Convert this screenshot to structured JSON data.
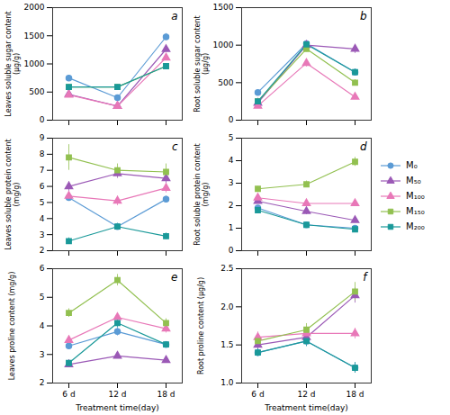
{
  "chart_data": [
    {
      "type": "line",
      "annotation": "a",
      "ylabel": "Leaves soluble sugar content  (μg/g)",
      "x": [
        6,
        12,
        18
      ],
      "xlim": [
        4,
        20
      ],
      "xticks": [
        {
          "value": 6,
          "label": "6 d"
        },
        {
          "value": 12,
          "label": "12 d"
        },
        {
          "value": 18,
          "label": "18 d"
        }
      ],
      "tick_labels": "y",
      "ylim": [
        0,
        2000
      ],
      "yticks": [
        0,
        500,
        1000,
        1500,
        2000
      ],
      "grid": false,
      "legend": "right",
      "series": [
        {
          "name": "M₀",
          "color": "#5b9bd5",
          "marker": "circle",
          "values": [
            750,
            400,
            1480
          ],
          "errors": [
            50,
            30,
            60
          ]
        },
        {
          "name": "M₅₀",
          "color": "#9b59b6",
          "marker": "triangle",
          "values": [
            460,
            250,
            1260
          ],
          "errors": [
            30,
            20,
            50
          ]
        },
        {
          "name": "M₁₀₀",
          "color": "#e878b8",
          "marker": "triangle",
          "values": [
            450,
            250,
            1110
          ],
          "errors": [
            30,
            20,
            50
          ]
        },
        {
          "name": "M₁₅₀",
          "color": "#92c050",
          "marker": "square",
          "values": [
            590,
            590,
            960
          ],
          "errors": [
            40,
            40,
            40
          ]
        },
        {
          "name": "M₂₀₀",
          "color": "#1a9999",
          "marker": "square",
          "values": [
            590,
            590,
            960
          ],
          "errors": [
            40,
            40,
            40
          ]
        }
      ]
    },
    {
      "type": "line",
      "annotation": "b",
      "ylabel": "Root soluble sugar content  (μg/g)",
      "x": [
        6,
        12,
        18
      ],
      "xlim": [
        4,
        20
      ],
      "xticks": [
        {
          "value": 6,
          "label": "6 d"
        },
        {
          "value": 12,
          "label": "12 d"
        },
        {
          "value": 18,
          "label": "18 d"
        }
      ],
      "tick_labels": "y",
      "ylim": [
        0,
        1500
      ],
      "yticks": [
        0,
        500,
        1000,
        1500
      ],
      "grid": false,
      "series": [
        {
          "name": "M₀",
          "color": "#5b9bd5",
          "marker": "circle",
          "values": [
            370,
            1020,
            640
          ],
          "errors": [
            30,
            40,
            40
          ]
        },
        {
          "name": "M₅₀",
          "color": "#9b59b6",
          "marker": "triangle",
          "values": [
            230,
            1000,
            950
          ],
          "errors": [
            20,
            30,
            60
          ]
        },
        {
          "name": "M₁₀₀",
          "color": "#e878b8",
          "marker": "triangle",
          "values": [
            190,
            760,
            310
          ],
          "errors": [
            20,
            50,
            30
          ]
        },
        {
          "name": "M₁₅₀",
          "color": "#92c050",
          "marker": "square",
          "values": [
            250,
            950,
            500
          ],
          "errors": [
            20,
            40,
            40
          ]
        },
        {
          "name": "M₂₀₀",
          "color": "#1a9999",
          "marker": "square",
          "values": [
            250,
            1010,
            640
          ],
          "errors": [
            20,
            40,
            40
          ]
        }
      ]
    },
    {
      "type": "line",
      "annotation": "c",
      "ylabel": "Leaves soluble protein content  (mg/g)",
      "x": [
        6,
        12,
        18
      ],
      "xlim": [
        4,
        20
      ],
      "xticks": [
        {
          "value": 6,
          "label": "6 d"
        },
        {
          "value": 12,
          "label": "12 d"
        },
        {
          "value": 18,
          "label": "18 d"
        }
      ],
      "tick_labels": "y",
      "ylim": [
        2,
        9
      ],
      "yticks": [
        2,
        3,
        4,
        5,
        6,
        7,
        8,
        9
      ],
      "grid": false,
      "series": [
        {
          "name": "M₀",
          "color": "#5b9bd5",
          "marker": "circle",
          "values": [
            5.3,
            3.5,
            5.2
          ],
          "errors": [
            0.2,
            0.2,
            0.2
          ]
        },
        {
          "name": "M₅₀",
          "color": "#9b59b6",
          "marker": "triangle",
          "values": [
            6.0,
            6.8,
            6.5
          ],
          "errors": [
            0.3,
            0.3,
            0.3
          ]
        },
        {
          "name": "M₁₀₀",
          "color": "#e878b8",
          "marker": "triangle",
          "values": [
            5.4,
            5.1,
            5.9
          ],
          "errors": [
            0.3,
            0.3,
            0.3
          ]
        },
        {
          "name": "M₁₅₀",
          "color": "#92c050",
          "marker": "square",
          "values": [
            7.8,
            7.0,
            6.9
          ],
          "errors": [
            0.8,
            0.4,
            0.5
          ]
        },
        {
          "name": "M₂₀₀",
          "color": "#1a9999",
          "marker": "square",
          "values": [
            2.6,
            3.5,
            2.9
          ],
          "errors": [
            0.2,
            0.2,
            0.2
          ]
        }
      ]
    },
    {
      "type": "line",
      "annotation": "d",
      "ylabel": "Root soluble protein content  (mg/g)",
      "x": [
        6,
        12,
        18
      ],
      "xlim": [
        4,
        20
      ],
      "xticks": [
        {
          "value": 6,
          "label": "6 d"
        },
        {
          "value": 12,
          "label": "12 d"
        },
        {
          "value": 18,
          "label": "18 d"
        }
      ],
      "tick_labels": "y",
      "ylim": [
        0,
        5
      ],
      "yticks": [
        0,
        1,
        2,
        3,
        4,
        5
      ],
      "grid": false,
      "series": [
        {
          "name": "M₀",
          "color": "#5b9bd5",
          "marker": "circle",
          "values": [
            1.9,
            1.15,
            1.0
          ],
          "errors": [
            0.1,
            0.1,
            0.1
          ]
        },
        {
          "name": "M₅₀",
          "color": "#9b59b6",
          "marker": "triangle",
          "values": [
            2.2,
            1.75,
            1.35
          ],
          "errors": [
            0.1,
            0.15,
            0.1
          ]
        },
        {
          "name": "M₁₀₀",
          "color": "#e878b8",
          "marker": "triangle",
          "values": [
            2.35,
            2.1,
            2.1
          ],
          "errors": [
            0.1,
            0.15,
            0.1
          ]
        },
        {
          "name": "M₁₅₀",
          "color": "#92c050",
          "marker": "square",
          "values": [
            2.75,
            2.95,
            3.95
          ],
          "errors": [
            0.1,
            0.15,
            0.2
          ]
        },
        {
          "name": "M₂₀₀",
          "color": "#1a9999",
          "marker": "square",
          "values": [
            1.8,
            1.15,
            0.95
          ],
          "errors": [
            0.1,
            0.1,
            0.1
          ]
        }
      ]
    },
    {
      "type": "line",
      "annotation": "e",
      "xlabel": "Treatment time(day)",
      "ylabel": "Leaves proline content  (mg/g)",
      "x": [
        6,
        12,
        18
      ],
      "xlim": [
        4,
        20
      ],
      "xticks": [
        {
          "value": 6,
          "label": "6 d"
        },
        {
          "value": 12,
          "label": "12 d"
        },
        {
          "value": 18,
          "label": "18 d"
        }
      ],
      "ylim": [
        2,
        6
      ],
      "yticks": [
        2,
        3,
        4,
        5,
        6
      ],
      "grid": false,
      "series": [
        {
          "name": "M₀",
          "color": "#5b9bd5",
          "marker": "circle",
          "values": [
            3.3,
            3.8,
            3.35
          ],
          "errors": [
            0.1,
            0.15,
            0.1
          ]
        },
        {
          "name": "M₅₀",
          "color": "#9b59b6",
          "marker": "triangle",
          "values": [
            2.65,
            2.95,
            2.8
          ],
          "errors": [
            0.1,
            0.1,
            0.1
          ]
        },
        {
          "name": "M₁₀₀",
          "color": "#e878b8",
          "marker": "triangle",
          "values": [
            3.5,
            4.3,
            3.9
          ],
          "errors": [
            0.15,
            0.15,
            0.15
          ]
        },
        {
          "name": "M₁₅₀",
          "color": "#92c050",
          "marker": "square",
          "values": [
            4.45,
            5.6,
            4.1
          ],
          "errors": [
            0.15,
            0.2,
            0.15
          ]
        },
        {
          "name": "M₂₀₀",
          "color": "#1a9999",
          "marker": "square",
          "values": [
            2.7,
            4.1,
            3.35
          ],
          "errors": [
            0.1,
            0.15,
            0.1
          ]
        }
      ]
    },
    {
      "type": "line",
      "annotation": "f",
      "xlabel": "Treatment time(day)",
      "ylabel": "Root proline content  (μg/g)",
      "x": [
        6,
        12,
        18
      ],
      "xlim": [
        4,
        20
      ],
      "xticks": [
        {
          "value": 6,
          "label": "6 d"
        },
        {
          "value": 12,
          "label": "12 d"
        },
        {
          "value": 18,
          "label": "18 d"
        }
      ],
      "ylim": [
        1.0,
        2.5
      ],
      "yticks": [
        {
          "value": 1.0,
          "label": "1.0"
        },
        1.5,
        {
          "value": 2.0,
          "label": "2.0"
        },
        2.5
      ],
      "grid": false,
      "series": [
        {
          "name": "M₀",
          "color": "#5b9bd5",
          "marker": "circle",
          "values": [
            1.4,
            1.55,
            1.2
          ],
          "errors": [
            0.05,
            0.07,
            0.07
          ]
        },
        {
          "name": "M₅₀",
          "color": "#9b59b6",
          "marker": "triangle",
          "values": [
            1.5,
            1.6,
            2.15
          ],
          "errors": [
            0.07,
            0.07,
            0.1
          ]
        },
        {
          "name": "M₁₀₀",
          "color": "#e878b8",
          "marker": "triangle",
          "values": [
            1.6,
            1.65,
            1.65
          ],
          "errors": [
            0.07,
            0.07,
            0.07
          ]
        },
        {
          "name": "M₁₅₀",
          "color": "#92c050",
          "marker": "square",
          "values": [
            1.55,
            1.7,
            2.2
          ],
          "errors": [
            0.07,
            0.08,
            0.12
          ]
        },
        {
          "name": "M₂₀₀",
          "color": "#1a9999",
          "marker": "square",
          "values": [
            1.4,
            1.55,
            1.2
          ],
          "errors": [
            0.05,
            0.07,
            0.07
          ]
        }
      ]
    }
  ]
}
